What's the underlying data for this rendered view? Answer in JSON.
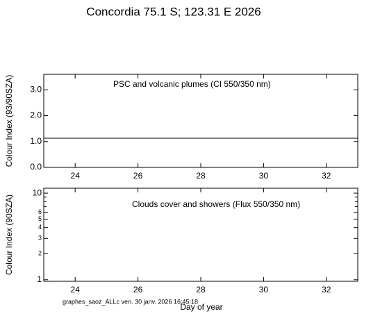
{
  "title": "Concordia  75.1 S; 123.31 E   2026",
  "footer": "graphes_saoz_ALLc  ven. 30 janv. 2026 16:45:18",
  "chart_data": [
    {
      "type": "line",
      "annotation": "PSC and volcanic plumes (CI 550/350 nm)",
      "ylabel": "Colour Index (93/90SZA)",
      "xlim": [
        23,
        33
      ],
      "xticks": [
        24,
        26,
        28,
        30,
        32
      ],
      "ylim": [
        0,
        3.6
      ],
      "yticks": [
        {
          "value": 0,
          "label": "0.0"
        },
        {
          "value": 1,
          "label": "1.0"
        },
        {
          "value": 2,
          "label": "2.0"
        },
        {
          "value": 3,
          "label": "3.0"
        }
      ],
      "series": [
        {
          "color": "#000000",
          "x": [
            23,
            33
          ],
          "values": [
            1.13,
            1.13
          ]
        }
      ]
    },
    {
      "type": "line",
      "annotation": "Clouds cover and showers (Flux 550/350 nm)",
      "ylabel": "Colour Index (90SZA)",
      "xlabel": "Day of year",
      "log_y": true,
      "xlim": [
        23,
        33
      ],
      "xticks": [
        24,
        26,
        28,
        30,
        32
      ],
      "ylim": [
        0.96,
        11.4
      ],
      "yticks": [
        1,
        2,
        3,
        4,
        5,
        6,
        10
      ],
      "yminor": [
        7,
        8,
        9
      ],
      "series": []
    }
  ]
}
